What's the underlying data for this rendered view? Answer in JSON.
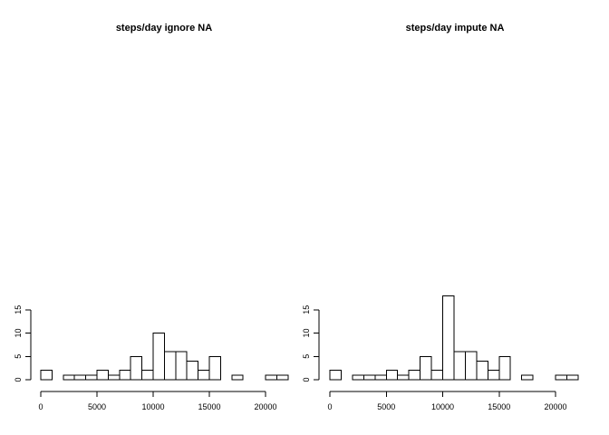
{
  "chart_data": [
    {
      "type": "bar",
      "title": "steps/day ignore NA",
      "xlabel": "",
      "ylabel": "",
      "bin_width": 1000,
      "bin_starts": [
        0,
        1000,
        2000,
        3000,
        4000,
        5000,
        6000,
        7000,
        8000,
        9000,
        10000,
        11000,
        12000,
        13000,
        14000,
        15000,
        16000,
        17000,
        18000,
        19000,
        20000,
        21000
      ],
      "values": [
        2,
        0,
        1,
        1,
        1,
        2,
        1,
        2,
        5,
        2,
        10,
        6,
        6,
        4,
        2,
        5,
        0,
        1,
        0,
        0,
        1,
        1
      ],
      "xlim": [
        0,
        22000
      ],
      "ylim": [
        0,
        18
      ],
      "x_ticks": [
        0,
        5000,
        10000,
        15000,
        20000
      ],
      "y_ticks": [
        0,
        5,
        10,
        15
      ],
      "bar_fill": "#ffffff",
      "bar_stroke": "#000000"
    },
    {
      "type": "bar",
      "title": "steps/day impute NA",
      "xlabel": "",
      "ylabel": "",
      "bin_width": 1000,
      "bin_starts": [
        0,
        1000,
        2000,
        3000,
        4000,
        5000,
        6000,
        7000,
        8000,
        9000,
        10000,
        11000,
        12000,
        13000,
        14000,
        15000,
        16000,
        17000,
        18000,
        19000,
        20000,
        21000
      ],
      "values": [
        2,
        0,
        1,
        1,
        1,
        2,
        1,
        2,
        5,
        2,
        18,
        6,
        6,
        4,
        2,
        5,
        0,
        1,
        0,
        0,
        1,
        1
      ],
      "xlim": [
        0,
        22000
      ],
      "ylim": [
        0,
        18
      ],
      "x_ticks": [
        0,
        5000,
        10000,
        15000,
        20000
      ],
      "y_ticks": [
        0,
        5,
        10,
        15
      ],
      "bar_fill": "#ffffff",
      "bar_stroke": "#000000"
    }
  ]
}
